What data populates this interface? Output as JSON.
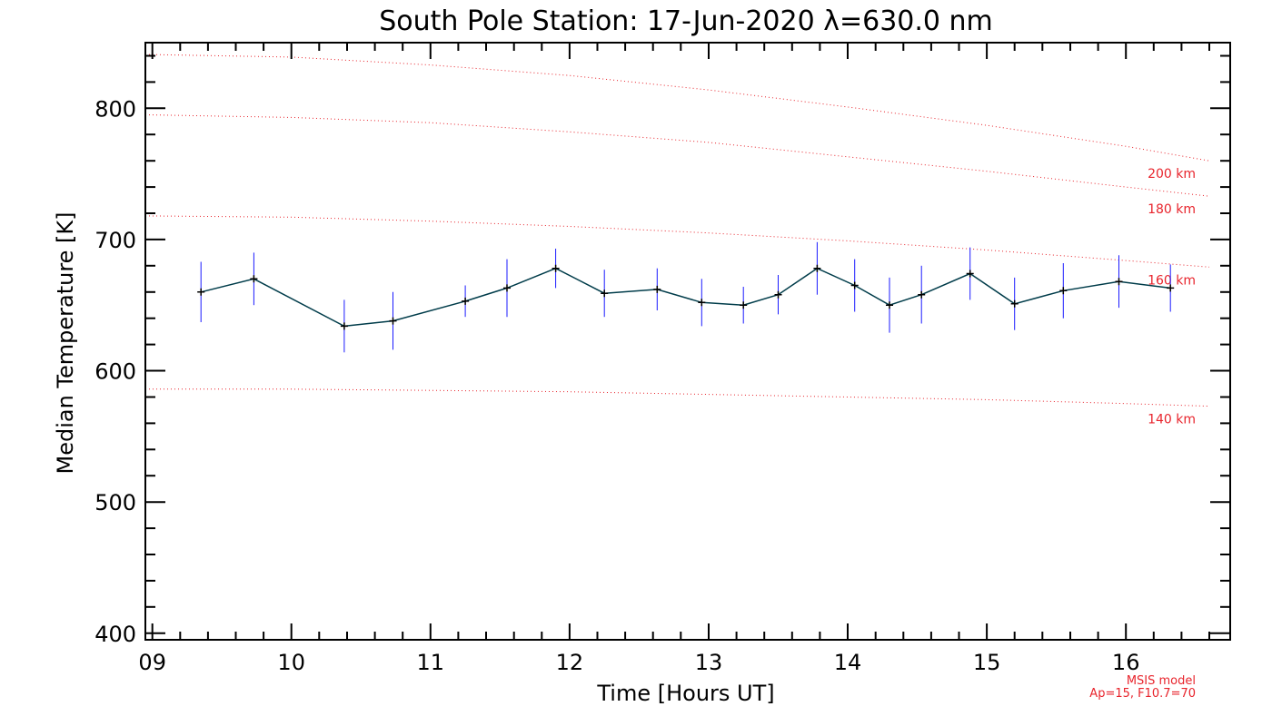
{
  "chart_data": {
    "type": "line",
    "title": "South Pole Station: 17-Jun-2020 λ=630.0 nm",
    "xlabel": "Time [Hours UT]",
    "ylabel": "Median Temperature [K]",
    "xlim": [
      8.95,
      16.75
    ],
    "ylim": [
      395,
      850
    ],
    "xticks": [
      9,
      10,
      11,
      12,
      13,
      14,
      15,
      16
    ],
    "xtick_labels": [
      "09",
      "10",
      "11",
      "12",
      "13",
      "14",
      "15",
      "16"
    ],
    "yticks": [
      400,
      500,
      600,
      700,
      800
    ],
    "ytick_labels": [
      "400",
      "500",
      "600",
      "700",
      "800"
    ],
    "x_minor_step": 0.2,
    "y_minor_step": 20,
    "series": [
      {
        "name": "Median Temperature",
        "color": "#003c4a",
        "marker": "plus",
        "error_color": "#1a1aff",
        "x": [
          9.35,
          9.73,
          10.38,
          10.73,
          11.25,
          11.55,
          11.9,
          12.25,
          12.63,
          12.95,
          13.25,
          13.5,
          13.78,
          14.05,
          14.3,
          14.53,
          14.88,
          15.2,
          15.55,
          15.95,
          16.32
        ],
        "y": [
          660,
          670,
          634,
          638,
          653,
          663,
          678,
          659,
          662,
          652,
          650,
          658,
          678,
          665,
          650,
          658,
          674,
          651,
          661,
          668,
          663
        ],
        "err": [
          23,
          20,
          20,
          22,
          12,
          22,
          15,
          18,
          16,
          18,
          14,
          15,
          20,
          20,
          21,
          22,
          20,
          20,
          21,
          20,
          18
        ]
      }
    ],
    "model_curves": [
      {
        "label": "200 km",
        "x": [
          8.95,
          10.0,
          11.0,
          12.0,
          13.0,
          14.0,
          15.0,
          16.0,
          16.6
        ],
        "y": [
          841,
          839,
          833,
          825,
          814,
          801,
          787,
          771,
          760
        ]
      },
      {
        "label": "180 km",
        "x": [
          8.95,
          10.0,
          11.0,
          12.0,
          13.0,
          14.0,
          15.0,
          16.0,
          16.6
        ],
        "y": [
          795,
          793,
          789,
          782,
          774,
          763,
          752,
          740,
          733
        ]
      },
      {
        "label": "160 km",
        "x": [
          8.95,
          10.0,
          11.0,
          12.0,
          13.0,
          14.0,
          15.0,
          16.0,
          16.6
        ],
        "y": [
          718,
          717,
          714,
          710,
          705,
          699,
          692,
          684,
          679
        ]
      },
      {
        "label": "140 km",
        "x": [
          8.95,
          10.0,
          11.0,
          12.0,
          13.0,
          14.0,
          15.0,
          16.0,
          16.6
        ],
        "y": [
          586,
          586,
          585,
          584,
          582,
          580,
          578,
          575,
          573
        ]
      }
    ],
    "model_color": "#e8242c",
    "model_note": [
      "MSIS model",
      "Ap=15, F10.7=70"
    ]
  }
}
